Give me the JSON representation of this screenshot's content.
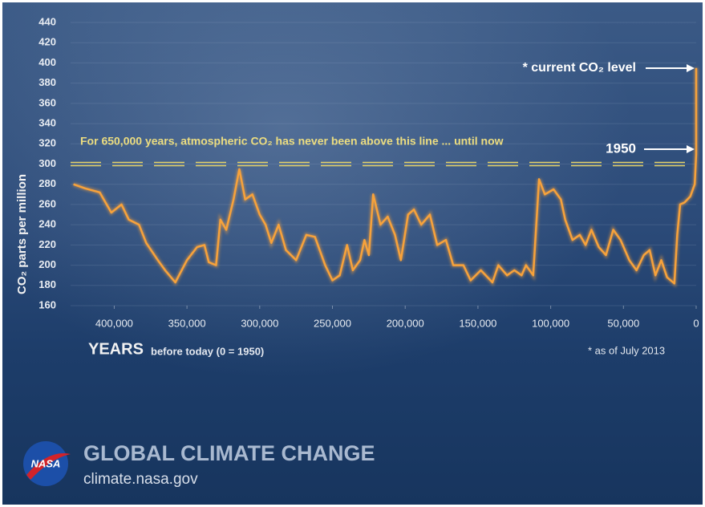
{
  "chart_data": {
    "type": "line",
    "ylabel": "CO₂ parts per million",
    "xlabel": "YEARS",
    "xlabel_note": "before today (0 = 1950)",
    "x": [
      428000,
      420000,
      410000,
      402000,
      395000,
      390000,
      383000,
      378000,
      370000,
      365000,
      358000,
      350000,
      343000,
      338000,
      335000,
      330000,
      327000,
      323000,
      318000,
      314000,
      310000,
      305000,
      300000,
      296000,
      292000,
      287000,
      282000,
      275000,
      268000,
      262000,
      255000,
      250000,
      245000,
      240000,
      236000,
      231000,
      228000,
      225000,
      222000,
      217000,
      212000,
      207000,
      203000,
      198000,
      194000,
      189000,
      183000,
      178000,
      172000,
      167000,
      160000,
      155000,
      148000,
      140000,
      136000,
      130000,
      125000,
      120000,
      117000,
      112000,
      108000,
      104000,
      98000,
      93000,
      90000,
      85000,
      80000,
      76000,
      72000,
      67000,
      62000,
      57000,
      52000,
      46000,
      41000,
      36000,
      32000,
      28000,
      24000,
      20000,
      15000,
      13000,
      11000,
      8000,
      4000,
      1000,
      0,
      0
    ],
    "values": [
      280,
      276,
      272,
      252,
      260,
      245,
      240,
      222,
      205,
      195,
      183,
      205,
      218,
      220,
      203,
      200,
      245,
      235,
      265,
      295,
      265,
      270,
      250,
      240,
      222,
      240,
      215,
      205,
      230,
      228,
      200,
      185,
      190,
      220,
      195,
      205,
      225,
      210,
      270,
      240,
      248,
      230,
      205,
      250,
      255,
      240,
      250,
      220,
      225,
      200,
      200,
      185,
      195,
      183,
      200,
      190,
      195,
      190,
      200,
      190,
      285,
      270,
      275,
      265,
      245,
      225,
      230,
      220,
      235,
      218,
      210,
      235,
      225,
      205,
      195,
      210,
      215,
      190,
      205,
      188,
      182,
      230,
      260,
      262,
      268,
      280,
      310,
      395
    ],
    "color": "#f7a23b",
    "threshold": 300,
    "threshold_color": "#e6d36a",
    "xlim": [
      430000,
      0
    ],
    "xticks": [
      {
        "value": 400000,
        "label": "400,000"
      },
      {
        "value": 350000,
        "label": "350,000"
      },
      {
        "value": 300000,
        "label": "300,000"
      },
      {
        "value": 250000,
        "label": "250,000"
      },
      {
        "value": 200000,
        "label": "200,000"
      },
      {
        "value": 150000,
        "label": "150,000"
      },
      {
        "value": 100000,
        "label": "100,000"
      },
      {
        "value": 50000,
        "label": "50,000"
      },
      0
    ],
    "ylim": [
      160,
      440
    ],
    "yticks": [
      160,
      180,
      200,
      220,
      240,
      260,
      280,
      300,
      320,
      340,
      360,
      380,
      400,
      420,
      440
    ],
    "grid": true,
    "annotations": {
      "threshold_note": "For 650,000 years, atmospheric CO₂ has never been above this line ... until now",
      "current": "* current CO₂ level",
      "year1950": "1950",
      "footnote": "* as of July 2013"
    }
  },
  "brand": {
    "logo": "NASA",
    "title": "GLOBAL CLIMATE CHANGE",
    "url": "climate.nasa.gov"
  }
}
